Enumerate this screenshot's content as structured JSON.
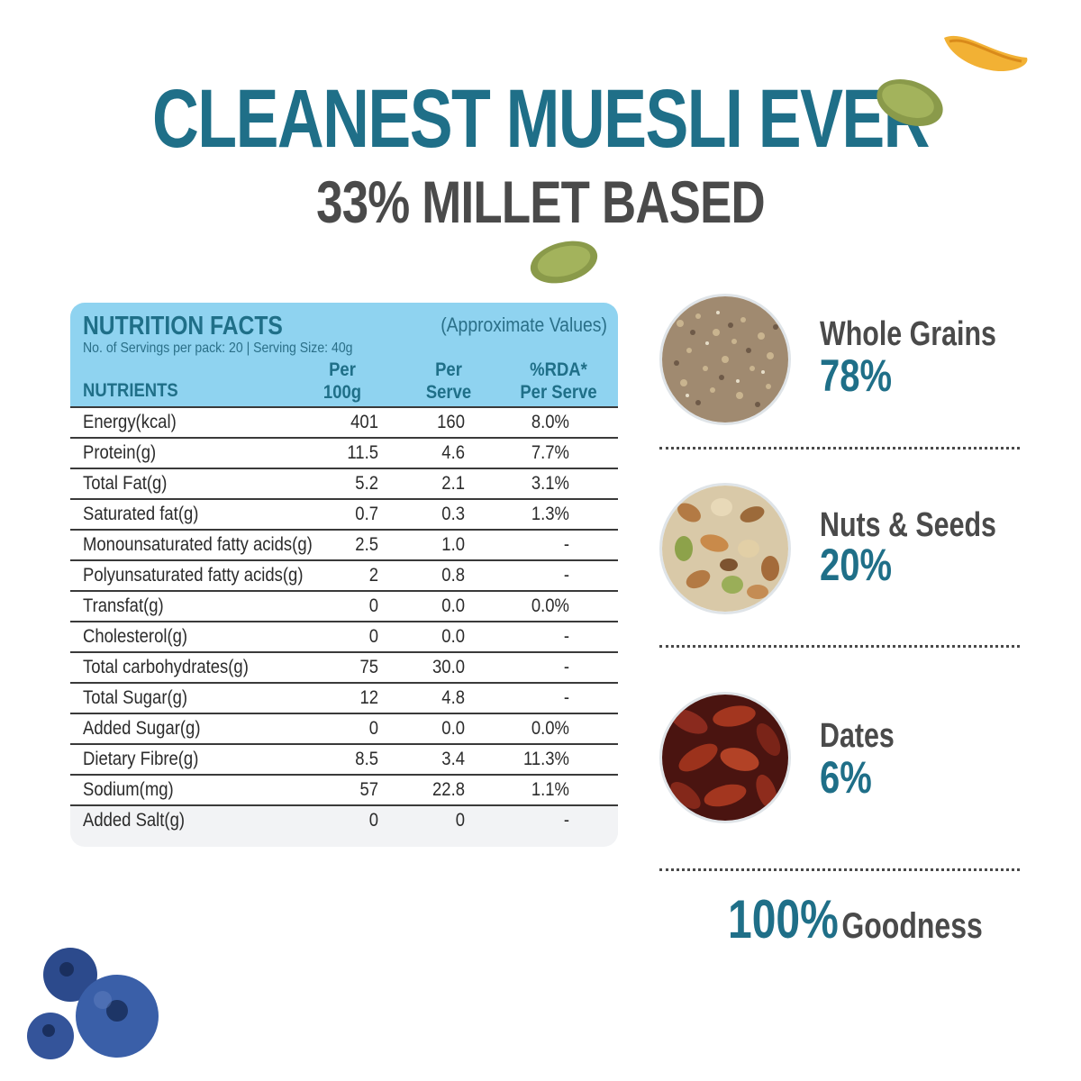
{
  "header": {
    "title": "CLEANEST MUESLI EVER",
    "subtitle": "33% MILLET BASED"
  },
  "nutrition": {
    "title": "NUTRITION FACTS",
    "approx_note": "(Approximate Values)",
    "serving_info": "No. of Servings per pack: 20 | Serving Size: 40g",
    "col_nutrients": "NUTRIENTS",
    "col_per100_line1": "Per",
    "col_per100_line2": "100g",
    "col_serve_line1": "Per",
    "col_serve_line2": "Serve",
    "col_rda_line1": "%RDA*",
    "col_rda_line2": "Per Serve",
    "rows": [
      {
        "name": "Energy(kcal)",
        "per100": "401",
        "serve": "160",
        "rda": "8.0%"
      },
      {
        "name": "Protein(g)",
        "per100": "11.5",
        "serve": "4.6",
        "rda": "7.7%"
      },
      {
        "name": "Total Fat(g)",
        "per100": "5.2",
        "serve": "2.1",
        "rda": "3.1%"
      },
      {
        "name": "Saturated fat(g)",
        "per100": "0.7",
        "serve": "0.3",
        "rda": "1.3%"
      },
      {
        "name": "Monounsaturated fatty acids(g)",
        "per100": "2.5",
        "serve": "1.0",
        "rda": "-"
      },
      {
        "name": "Polyunsaturated fatty acids(g)",
        "per100": "2",
        "serve": "0.8",
        "rda": "-"
      },
      {
        "name": "Transfat(g)",
        "per100": "0",
        "serve": "0.0",
        "rda": "0.0%"
      },
      {
        "name": "Cholesterol(g)",
        "per100": "0",
        "serve": "0.0",
        "rda": "-"
      },
      {
        "name": "Total carbohydrates(g)",
        "per100": "75",
        "serve": "30.0",
        "rda": "-"
      },
      {
        "name": "Total Sugar(g)",
        "per100": "12",
        "serve": "4.8",
        "rda": "-"
      },
      {
        "name": "Added Sugar(g)",
        "per100": "0",
        "serve": "0.0",
        "rda": "0.0%"
      },
      {
        "name": "Dietary Fibre(g)",
        "per100": "8.5",
        "serve": "3.4",
        "rda": "11.3%"
      },
      {
        "name": "Sodium(mg)",
        "per100": "57",
        "serve": "22.8",
        "rda": "1.1%"
      },
      {
        "name": "Added Salt(g)",
        "per100": "0",
        "serve": "0",
        "rda": "-"
      }
    ]
  },
  "ingredients": [
    {
      "label": "Whole Grains",
      "percent": "78%",
      "icon": "whole-grains-image"
    },
    {
      "label": "Nuts & Seeds",
      "percent": "20%",
      "icon": "nuts-seeds-image"
    },
    {
      "label": "Dates",
      "percent": "6%",
      "icon": "dates-image"
    }
  ],
  "goodness": {
    "percent": "100%",
    "label": "Goodness"
  },
  "colors": {
    "brand_teal": "#1f6f88",
    "header_blue": "#8fd3f0",
    "text_gray": "#4a4a4a"
  }
}
